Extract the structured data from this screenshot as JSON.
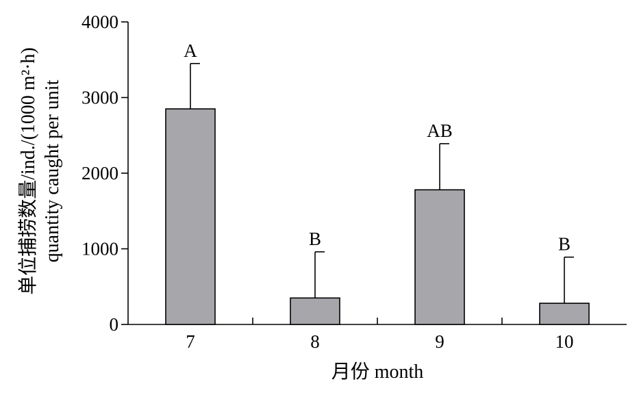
{
  "chart_data": {
    "type": "bar",
    "categories": [
      "7",
      "8",
      "9",
      "10"
    ],
    "values": [
      2850,
      350,
      1780,
      280
    ],
    "error_upper": [
      3450,
      960,
      2390,
      890
    ],
    "significance_labels": [
      "A",
      "B",
      "AB",
      "B"
    ],
    "xlabel": "月份 month",
    "ylabel_line1": "单位捕捞数量/ind./(1000 m²·h)",
    "ylabel_line2": "quantity caught per unit",
    "ylim": [
      0,
      4000
    ],
    "yticks": [
      0,
      1000,
      2000,
      3000,
      4000
    ],
    "ytick_labels": [
      "0",
      "1000",
      "2000",
      "3000",
      "4000"
    ],
    "grid": false,
    "legend": "none",
    "bar_color": "#a7a6ab"
  }
}
